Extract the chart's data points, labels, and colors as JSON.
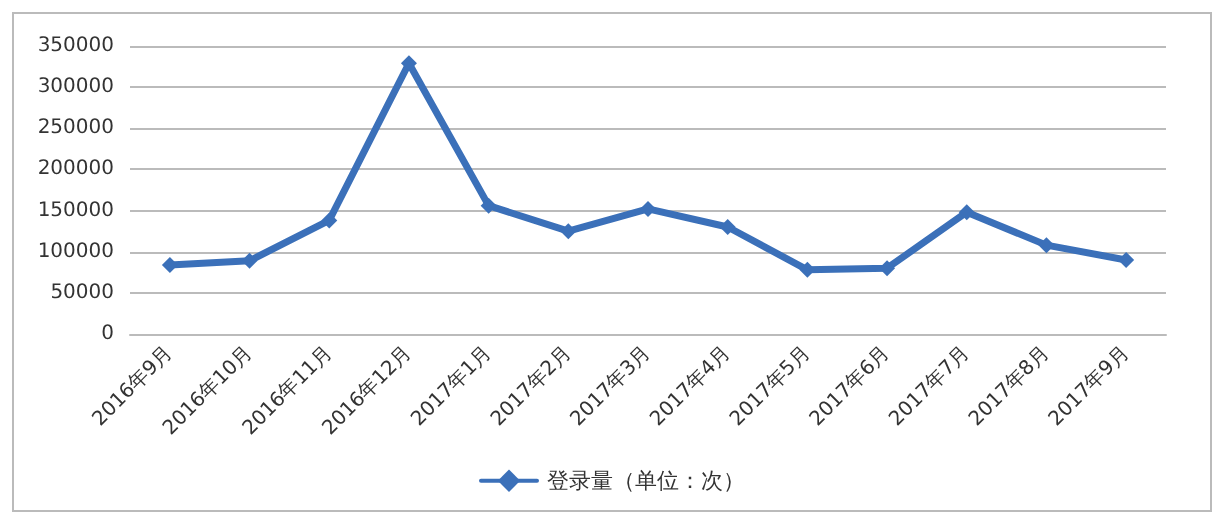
{
  "chart_data": {
    "type": "line",
    "categories": [
      "2016年9月",
      "2016年10月",
      "2016年11月",
      "2016年12月",
      "2017年1月",
      "2017年2月",
      "2017年3月",
      "2017年4月",
      "2017年5月",
      "2017年6月",
      "2017年7月",
      "2017年8月",
      "2017年9月"
    ],
    "series": [
      {
        "name": "登录量（单位：次）",
        "color": "#3b70b9",
        "values": [
          84000,
          89000,
          138000,
          329000,
          156000,
          125000,
          152000,
          130000,
          78000,
          80000,
          148000,
          108000,
          90000
        ]
      }
    ],
    "ylim": [
      0,
      350000
    ],
    "yticks": [
      0,
      50000,
      100000,
      150000,
      200000,
      250000,
      300000,
      350000
    ],
    "grid": "y",
    "legend": "bottom",
    "marker": "diamond",
    "line_style": "solid"
  }
}
